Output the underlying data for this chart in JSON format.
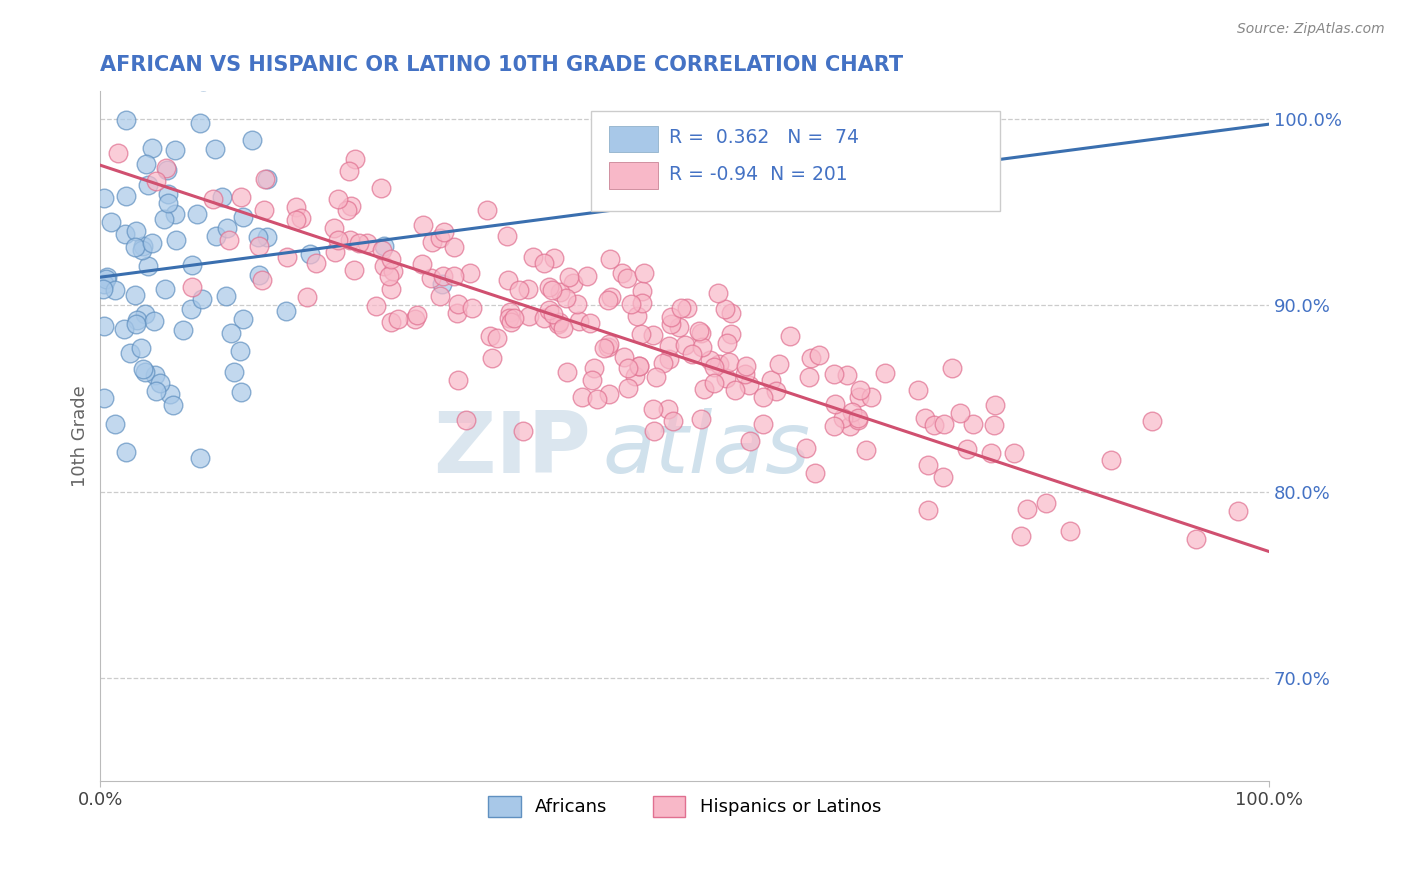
{
  "title": "AFRICAN VS HISPANIC OR LATINO 10TH GRADE CORRELATION CHART",
  "source_text": "Source: ZipAtlas.com",
  "ylabel": "10th Grade",
  "xlim": [
    0.0,
    1.0
  ],
  "ylim": [
    0.645,
    1.015
  ],
  "right_yticks": [
    0.7,
    0.8,
    0.9,
    1.0
  ],
  "right_yticklabels": [
    "70.0%",
    "80.0%",
    "90.0%",
    "100.0%"
  ],
  "xticklabels": [
    "0.0%",
    "100.0%"
  ],
  "xticks": [
    0.0,
    1.0
  ],
  "blue_R": 0.362,
  "blue_N": 74,
  "pink_R": -0.94,
  "pink_N": 201,
  "blue_color": "#a8c8e8",
  "pink_color": "#f8b8c8",
  "blue_edge_color": "#6090c0",
  "pink_edge_color": "#e07090",
  "blue_line_color": "#3a6faf",
  "pink_line_color": "#d05070",
  "legend_label_blue": "Africans",
  "legend_label_pink": "Hispanics or Latinos",
  "watermark_zip": "ZIP",
  "watermark_atlas": "atlas",
  "background_color": "#ffffff",
  "grid_color": "#cccccc",
  "title_color": "#4472c4",
  "axis_label_color": "#666666",
  "right_tick_color": "#4472c4",
  "legend_R_color": "#4472c4",
  "figsize": [
    14.06,
    8.92
  ],
  "dpi": 100,
  "blue_line_start_y": 0.915,
  "blue_line_end_y": 0.997,
  "pink_line_start_y": 0.975,
  "pink_line_end_y": 0.768
}
